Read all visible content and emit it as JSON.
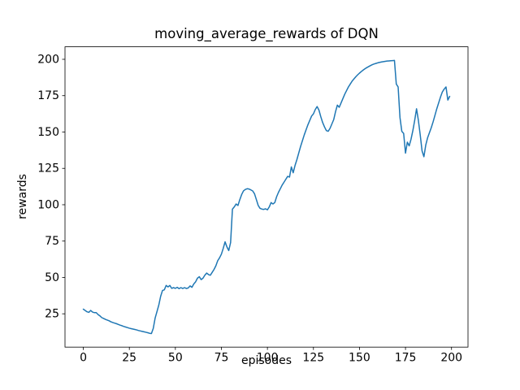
{
  "figure": {
    "background": "#ffffff",
    "text_color": "#000000",
    "spine_color": "#000000"
  },
  "chart_data": {
    "type": "line",
    "title": "moving_average_rewards of DQN",
    "xlabel": "episodes",
    "ylabel": "rewards",
    "grid": false,
    "legend_position": "none",
    "xlim": [
      -9.95,
      208.95
    ],
    "ylim": [
      2.1,
      208.6
    ],
    "x_ticks": [
      0,
      25,
      50,
      75,
      100,
      125,
      150,
      175,
      200
    ],
    "y_ticks": [
      25,
      50,
      75,
      100,
      125,
      150,
      175,
      200
    ],
    "series": [
      {
        "name": "moving average rewards",
        "color": "#1f77b4",
        "line_width": 1.5,
        "x_start": 0,
        "x_step": 1,
        "values": [
          28.2,
          27.3,
          26.4,
          26.0,
          27.3,
          26.2,
          25.8,
          25.8,
          24.5,
          23.6,
          22.4,
          21.8,
          21.2,
          20.7,
          20.2,
          19.5,
          19.0,
          18.6,
          18.2,
          17.7,
          17.2,
          16.8,
          16.3,
          15.9,
          15.5,
          15.1,
          14.8,
          14.5,
          14.2,
          13.9,
          13.5,
          13.2,
          12.9,
          12.6,
          12.3,
          12.0,
          11.6,
          11.4,
          15.0,
          22.0,
          26.5,
          31.0,
          37.0,
          41.0,
          41.5,
          44.5,
          43.5,
          44.5,
          42.5,
          43.0,
          42.5,
          43.2,
          42.3,
          43.0,
          42.4,
          43.0,
          42.4,
          42.8,
          44.2,
          43.2,
          45.5,
          47.0,
          49.5,
          50.5,
          48.5,
          49.5,
          51.5,
          53.0,
          52.0,
          51.5,
          53.5,
          55.5,
          58.0,
          61.5,
          63.5,
          66.0,
          70.0,
          74.5,
          71.0,
          68.5,
          74.0,
          97.0,
          98.5,
          100.5,
          99.5,
          103.5,
          107.0,
          109.5,
          110.5,
          111.0,
          110.8,
          110.2,
          109.5,
          107.5,
          103.5,
          99.5,
          97.5,
          97.0,
          96.8,
          97.2,
          96.5,
          98.5,
          101.5,
          100.5,
          101.5,
          105.5,
          108.5,
          111.0,
          113.5,
          115.5,
          117.5,
          119.5,
          119.0,
          126.0,
          122.0,
          127.0,
          131.0,
          135.5,
          140.0,
          144.0,
          148.0,
          151.5,
          155.0,
          158.0,
          161.0,
          162.5,
          165.5,
          167.5,
          165.0,
          160.5,
          156.5,
          153.5,
          151.0,
          150.5,
          152.5,
          155.5,
          158.5,
          164.0,
          168.5,
          167.0,
          170.0,
          173.0,
          176.0,
          178.5,
          181.0,
          183.0,
          185.0,
          186.5,
          188.0,
          189.3,
          190.5,
          191.6,
          192.6,
          193.5,
          194.3,
          195.0,
          195.7,
          196.3,
          196.8,
          197.2,
          197.6,
          197.9,
          198.2,
          198.4,
          198.6,
          198.8,
          198.9,
          199.0,
          199.1,
          199.2,
          183.0,
          181.0,
          160.0,
          150.5,
          149.0,
          135.5,
          143.0,
          140.5,
          145.0,
          151.0,
          158.0,
          166.0,
          158.0,
          148.0,
          137.0,
          133.0,
          141.0,
          146.0,
          149.5,
          153.0,
          157.0,
          161.5,
          166.0,
          170.0,
          174.0,
          177.5,
          179.5,
          181.0,
          172.0,
          174.5
        ]
      }
    ]
  }
}
